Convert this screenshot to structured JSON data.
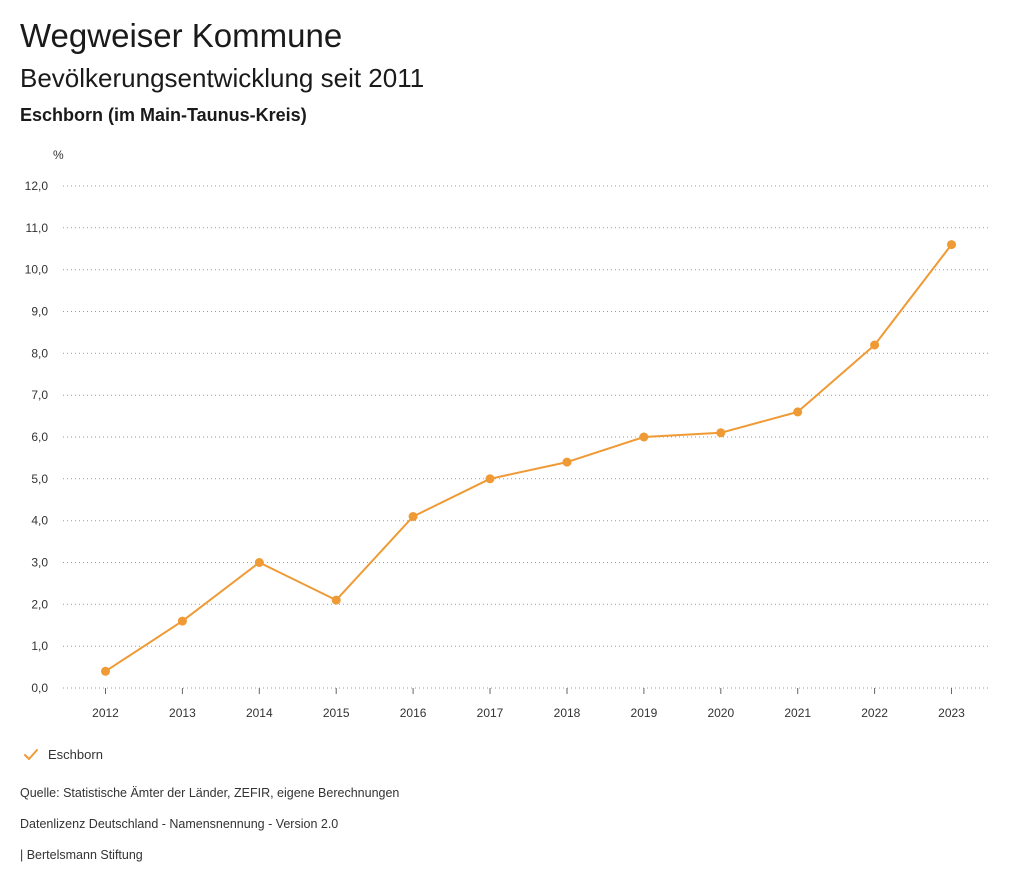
{
  "page": {
    "title": "Wegweiser Kommune"
  },
  "chart_data": {
    "type": "line",
    "title": "Bevölkerungsentwicklung seit 2011",
    "subtitle": "Eschborn (im Main-Taunus-Kreis)",
    "ylabel": "%",
    "ylim": [
      0,
      12
    ],
    "yticks": [
      0,
      1,
      2,
      3,
      4,
      5,
      6,
      7,
      8,
      9,
      10,
      11,
      12
    ],
    "ytick_labels": [
      "0,0",
      "1,0",
      "2,0",
      "3,0",
      "4,0",
      "5,0",
      "6,0",
      "7,0",
      "8,0",
      "9,0",
      "10,0",
      "11,0",
      "12,0"
    ],
    "categories": [
      "2012",
      "2013",
      "2014",
      "2015",
      "2016",
      "2017",
      "2018",
      "2019",
      "2020",
      "2021",
      "2022",
      "2023"
    ],
    "series": [
      {
        "name": "Eschborn",
        "values": [
          0.4,
          1.6,
          3.0,
          2.1,
          4.1,
          5.0,
          5.4,
          6.0,
          6.1,
          6.6,
          8.2,
          10.6
        ],
        "color": "#ef9a34"
      }
    ],
    "grid": true,
    "legend": "bottom-left"
  },
  "legend": {
    "icon": "check-icon"
  },
  "footer": {
    "source": "Quelle: Statistische Ämter der Länder, ZEFIR, eigene Berechnungen",
    "license": "Datenlizenz Deutschland - Namensnennung - Version 2.0",
    "credit": "| Bertelsmann Stiftung"
  },
  "colors": {
    "accent": "#ef9a34",
    "text": "#1a1a1a",
    "muted": "#333333",
    "grid": "#9a9a9a"
  }
}
